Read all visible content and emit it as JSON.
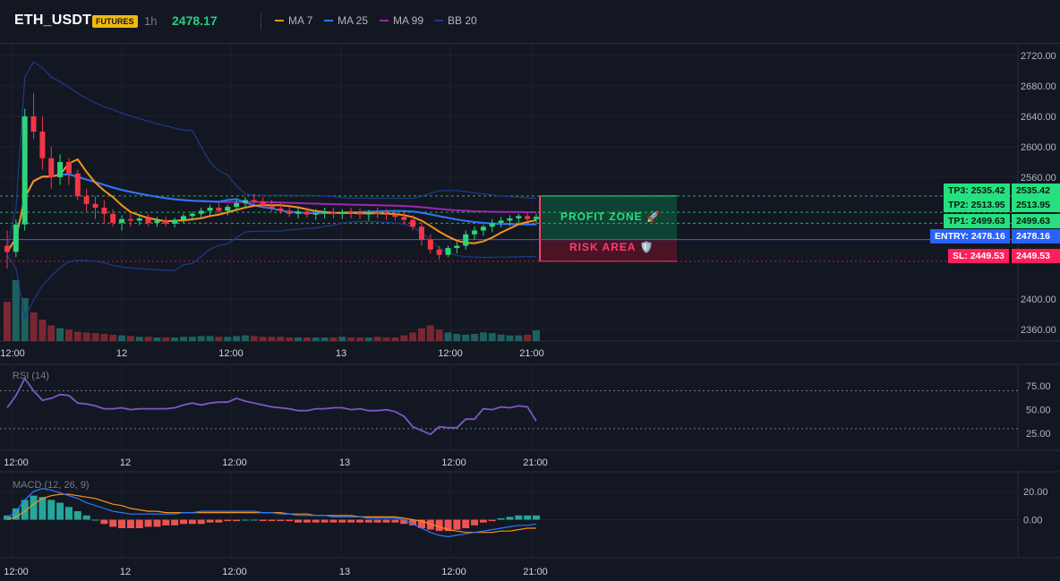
{
  "header": {
    "symbol": "ETH_USDT",
    "badge": "FUTURES",
    "timeframe": "1h",
    "price": "2478.17",
    "legend": [
      {
        "label": "MA 7",
        "color": "#f7931a"
      },
      {
        "label": "MA 25",
        "color": "#2979ff"
      },
      {
        "label": "MA 99",
        "color": "#9c27b0"
      },
      {
        "label": "BB 20",
        "color": "#1e3a8a"
      }
    ]
  },
  "colors": {
    "up": "#26a69a",
    "up_bright": "#2ed47a",
    "down": "#f23645",
    "tp": "#26e07f",
    "entry": "#2962ff",
    "sl": "#ff1f5a"
  },
  "price_axis": {
    "ticks": [
      "2720.00",
      "2680.00",
      "2640.00",
      "2600.00",
      "2560.00",
      "2400.00",
      "2360.00"
    ]
  },
  "rsi_axis": {
    "ticks": [
      "75.00",
      "50.00",
      "25.00"
    ]
  },
  "macd_axis": {
    "ticks": [
      "20.00",
      "0.00"
    ]
  },
  "time_axis": {
    "ticks": [
      "12:00",
      "12",
      "12:00",
      "13",
      "12:00",
      "21:00"
    ]
  },
  "panes": {
    "rsi_title": "RSI (14)",
    "macd_title": "MACD (12, 26, 9)"
  },
  "levels": {
    "tp3": {
      "line": "TP3: 2535.42",
      "axis": "2535.42"
    },
    "tp2": {
      "line": "TP2: 2513.95",
      "axis": "2513.95"
    },
    "tp1": {
      "line": "TP1: 2499.63",
      "axis": "2499.63"
    },
    "entry": {
      "line": "ENTRY: 2478.16",
      "axis": "2478.16"
    },
    "sl": {
      "line": "SL: 2449.53",
      "axis": "2449.53"
    }
  },
  "zones": {
    "profit": "PROFIT ZONE 🚀",
    "risk": "RISK AREA 🛡️"
  },
  "chart_data": {
    "type": "candlestick",
    "price_range": [
      2340,
      2740
    ],
    "candles": [
      [
        2470,
        2490,
        2440,
        2462
      ],
      [
        2462,
        2505,
        2455,
        2498
      ],
      [
        2498,
        2650,
        2490,
        2640
      ],
      [
        2640,
        2670,
        2610,
        2620
      ],
      [
        2620,
        2640,
        2570,
        2585
      ],
      [
        2585,
        2600,
        2545,
        2560
      ],
      [
        2560,
        2590,
        2550,
        2580
      ],
      [
        2580,
        2585,
        2550,
        2565
      ],
      [
        2565,
        2570,
        2530,
        2535
      ],
      [
        2535,
        2545,
        2515,
        2525
      ],
      [
        2525,
        2535,
        2505,
        2520
      ],
      [
        2520,
        2530,
        2500,
        2512
      ],
      [
        2512,
        2518,
        2495,
        2500
      ],
      [
        2500,
        2510,
        2490,
        2505
      ],
      [
        2505,
        2512,
        2495,
        2503
      ],
      [
        2503,
        2510,
        2497,
        2506
      ],
      [
        2506,
        2512,
        2496,
        2500
      ],
      [
        2500,
        2508,
        2495,
        2503
      ],
      [
        2503,
        2508,
        2495,
        2499
      ],
      [
        2499,
        2507,
        2494,
        2504
      ],
      [
        2504,
        2512,
        2500,
        2509
      ],
      [
        2509,
        2515,
        2503,
        2512
      ],
      [
        2512,
        2520,
        2506,
        2516
      ],
      [
        2516,
        2524,
        2510,
        2520
      ],
      [
        2520,
        2526,
        2512,
        2516
      ],
      [
        2516,
        2524,
        2510,
        2521
      ],
      [
        2521,
        2530,
        2515,
        2526
      ],
      [
        2526,
        2534,
        2520,
        2530
      ],
      [
        2530,
        2538,
        2524,
        2528
      ],
      [
        2528,
        2534,
        2520,
        2523
      ],
      [
        2523,
        2530,
        2515,
        2519
      ],
      [
        2519,
        2526,
        2512,
        2516
      ],
      [
        2516,
        2522,
        2508,
        2512
      ],
      [
        2512,
        2520,
        2506,
        2515
      ],
      [
        2515,
        2520,
        2507,
        2511
      ],
      [
        2511,
        2518,
        2504,
        2513
      ],
      [
        2513,
        2520,
        2506,
        2514
      ],
      [
        2514,
        2520,
        2506,
        2512
      ],
      [
        2512,
        2518,
        2505,
        2514
      ],
      [
        2514,
        2520,
        2506,
        2513
      ],
      [
        2513,
        2519,
        2505,
        2511
      ],
      [
        2511,
        2517,
        2503,
        2513
      ],
      [
        2513,
        2520,
        2506,
        2512
      ],
      [
        2512,
        2518,
        2504,
        2511
      ],
      [
        2511,
        2517,
        2503,
        2508
      ],
      [
        2508,
        2515,
        2500,
        2504
      ],
      [
        2504,
        2510,
        2490,
        2495
      ],
      [
        2495,
        2500,
        2470,
        2478
      ],
      [
        2478,
        2485,
        2460,
        2465
      ],
      [
        2465,
        2470,
        2452,
        2458
      ],
      [
        2458,
        2470,
        2455,
        2467
      ],
      [
        2467,
        2475,
        2460,
        2470
      ],
      [
        2470,
        2490,
        2465,
        2485
      ],
      [
        2485,
        2495,
        2478,
        2490
      ],
      [
        2490,
        2498,
        2483,
        2495
      ],
      [
        2495,
        2505,
        2488,
        2500
      ],
      [
        2500,
        2508,
        2494,
        2503
      ],
      [
        2503,
        2510,
        2496,
        2506
      ],
      [
        2506,
        2512,
        2500,
        2509
      ],
      [
        2509,
        2514,
        2502,
        2505
      ],
      [
        2505,
        2512,
        2498,
        2508
      ]
    ],
    "volume": [
      55,
      85,
      60,
      40,
      30,
      22,
      18,
      16,
      13,
      12,
      11,
      10,
      9,
      8,
      7,
      6,
      6,
      5,
      5,
      5,
      6,
      6,
      7,
      7,
      6,
      6,
      7,
      8,
      7,
      6,
      6,
      6,
      5,
      5,
      5,
      5,
      5,
      5,
      6,
      5,
      5,
      5,
      6,
      5,
      5,
      8,
      12,
      18,
      22,
      16,
      12,
      10,
      9,
      10,
      12,
      11,
      9,
      8,
      8,
      9,
      15
    ],
    "levels": {
      "tp3": 2535.42,
      "tp2": 2513.95,
      "tp1": 2499.63,
      "entry": 2478.16,
      "sl": 2449.53
    },
    "rsi": {
      "range": [
        10,
        95
      ],
      "levels": [
        70,
        30
      ],
      "values": [
        52,
        65,
        83,
        70,
        60,
        62,
        66,
        65,
        57,
        56,
        54,
        51,
        51,
        52,
        50,
        51,
        51,
        51,
        51,
        52,
        55,
        57,
        55,
        57,
        58,
        58,
        62,
        59,
        57,
        55,
        53,
        52,
        51,
        49,
        49,
        51,
        51,
        52,
        52,
        50,
        51,
        49,
        49,
        50,
        48,
        43,
        32,
        28,
        24,
        32,
        31,
        31,
        40,
        40,
        51,
        50,
        53,
        52,
        54,
        53,
        38
      ]
    },
    "macd": {
      "range": [
        -25,
        32
      ],
      "hist": [
        3,
        8,
        14,
        17,
        16,
        14,
        12,
        9,
        6,
        3,
        0,
        -3,
        -5,
        -6,
        -6,
        -6,
        -5,
        -5,
        -4,
        -4,
        -3,
        -3,
        -3,
        -2,
        -2,
        -1,
        -1,
        0,
        0,
        -1,
        -1,
        -1,
        -1,
        -2,
        -2,
        -2,
        -2,
        -2,
        -2,
        -2,
        -2,
        -2,
        -2,
        -2,
        -2,
        -3,
        -4,
        -6,
        -7,
        -8,
        -8,
        -7,
        -6,
        -4,
        -2,
        -1,
        1,
        2,
        3,
        3,
        3
      ],
      "macd": [
        1,
        6,
        14,
        20,
        22,
        21,
        19,
        17,
        15,
        12,
        10,
        8,
        6,
        5,
        4,
        4,
        4,
        4,
        4,
        4,
        5,
        5,
        6,
        6,
        6,
        6,
        6,
        6,
        6,
        5,
        5,
        4,
        4,
        3,
        3,
        3,
        3,
        2,
        2,
        2,
        2,
        1,
        1,
        1,
        1,
        0,
        -3,
        -6,
        -9,
        -11,
        -12,
        -11,
        -10,
        -9,
        -8,
        -7,
        -6,
        -5,
        -4,
        -4,
        -3
      ],
      "signal": [
        0,
        2,
        6,
        11,
        15,
        17,
        18,
        18,
        17,
        16,
        15,
        13,
        11,
        10,
        8,
        7,
        6,
        6,
        5,
        5,
        5,
        5,
        5,
        5,
        5,
        5,
        5,
        5,
        5,
        5,
        5,
        5,
        4,
        4,
        4,
        3,
        3,
        3,
        3,
        3,
        2,
        2,
        2,
        2,
        2,
        1,
        0,
        -1,
        -3,
        -5,
        -7,
        -8,
        -9,
        -9,
        -9,
        -9,
        -8,
        -8,
        -7,
        -6,
        -6
      ]
    }
  }
}
